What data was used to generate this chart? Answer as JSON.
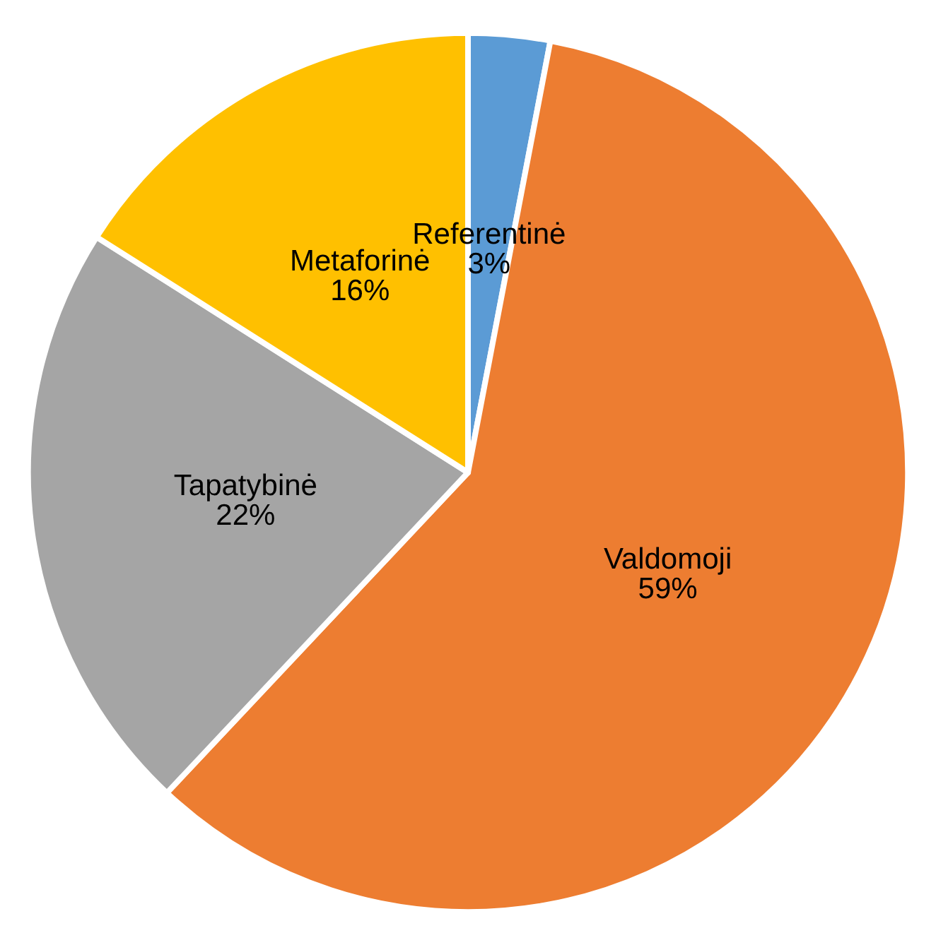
{
  "chart_data": {
    "type": "pie",
    "categories": [
      "Referentinė",
      "Valdomoji",
      "Tapatybinė",
      "Metaforinė"
    ],
    "values": [
      3,
      59,
      22,
      16
    ],
    "value_labels": [
      "3%",
      "59%",
      "22%",
      "16%"
    ],
    "colors": [
      "#5b9bd5",
      "#ed7d31",
      "#a5a5a5",
      "#ffc000"
    ],
    "legend": false
  }
}
